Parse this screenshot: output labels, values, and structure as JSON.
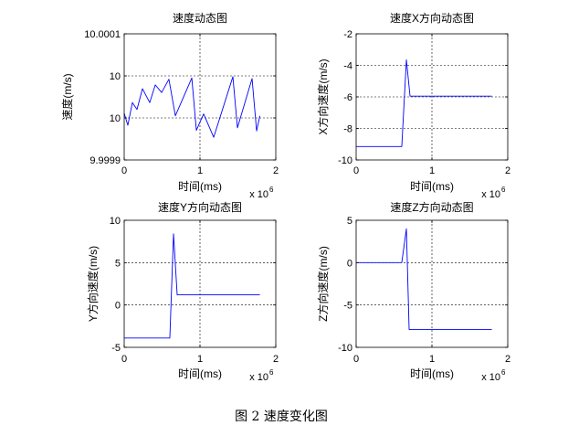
{
  "figure": {
    "caption": "图 2 速度变化图"
  },
  "chart_data": [
    {
      "type": "line",
      "title": "速度动态图",
      "xlabel": "时间(ms)",
      "ylabel": "速度(m/s)",
      "xlim": [
        0,
        2000000
      ],
      "ylim": [
        9.9999,
        10.0001
      ],
      "xticks": [
        0,
        1000000,
        2000000
      ],
      "xtick_labels": [
        "0",
        "1",
        "2"
      ],
      "x_multiplier": {
        "base": "x 10",
        "exponent": "6"
      },
      "yticks": [
        9.9999,
        9.999966667,
        10.000033333,
        10.0001
      ],
      "ytick_labels": [
        "9.9999",
        "10",
        "10",
        "10.0001"
      ],
      "grid": true,
      "series": [
        {
          "color": "#0000ff",
          "x": [
            0,
            48000,
            108000,
            169000,
            241000,
            337000,
            410000,
            494000,
            590000,
            675000,
            892000,
            952000,
            1048000,
            1181000,
            1434000,
            1494000,
            1687000,
            1747000,
            1790000
          ],
          "y": [
            9.999974,
            9.999955,
            9.999991,
            9.99998,
            10.000013,
            9.999991,
            10.000019,
            10.000007,
            10.000028,
            9.99997,
            10.00003,
            9.999947,
            9.999973,
            9.999936,
            10.000032,
            9.999951,
            10.000029,
            9.999946,
            9.99997
          ]
        }
      ]
    },
    {
      "type": "line",
      "title": "速度X方向动态图",
      "xlabel": "时间(ms)",
      "ylabel": "X方向速度(m/s)",
      "xlim": [
        0,
        2000000
      ],
      "ylim": [
        -10,
        -2
      ],
      "xticks": [
        0,
        1000000,
        2000000
      ],
      "xtick_labels": [
        "0",
        "1",
        "2"
      ],
      "x_multiplier": {
        "base": "x 10",
        "exponent": "6"
      },
      "yticks": [
        -10,
        -8,
        -6,
        -4,
        -2
      ],
      "ytick_labels": [
        "-10",
        "-8",
        "-6",
        "-4",
        "-2"
      ],
      "grid": true,
      "series": [
        {
          "color": "#0000ff",
          "x": [
            0,
            602000,
            663000,
            711000,
            1790000
          ],
          "y": [
            -9.15,
            -9.15,
            -3.65,
            -5.95,
            -5.95
          ]
        }
      ]
    },
    {
      "type": "line",
      "title": "速度Y方向动态图",
      "xlabel": "时间(ms)",
      "ylabel": "Y方向速度(m/s)",
      "xlim": [
        0,
        2000000
      ],
      "ylim": [
        -5,
        10
      ],
      "xticks": [
        0,
        1000000,
        2000000
      ],
      "xtick_labels": [
        "0",
        "1",
        "2"
      ],
      "x_multiplier": {
        "base": "x 10",
        "exponent": "6"
      },
      "yticks": [
        -5,
        0,
        5,
        10
      ],
      "ytick_labels": [
        "-5",
        "0",
        "5",
        "10"
      ],
      "grid": true,
      "series": [
        {
          "color": "#0000ff",
          "x": [
            0,
            602000,
            651000,
            699000,
            1790000
          ],
          "y": [
            -3.9,
            -3.9,
            8.4,
            1.2,
            1.2
          ]
        }
      ]
    },
    {
      "type": "line",
      "title": "速度Z方向动态图",
      "xlabel": "时间(ms)",
      "ylabel": "Z方向速度(m/s)",
      "xlim": [
        0,
        2000000
      ],
      "ylim": [
        -10,
        5
      ],
      "xticks": [
        0,
        1000000,
        2000000
      ],
      "xtick_labels": [
        "0",
        "1",
        "2"
      ],
      "x_multiplier": {
        "base": "x 10",
        "exponent": "6"
      },
      "yticks": [
        -10,
        -5,
        0,
        5
      ],
      "ytick_labels": [
        "-10",
        "-5",
        "0",
        "5"
      ],
      "grid": true,
      "series": [
        {
          "color": "#0000ff",
          "x": [
            0,
            602000,
            663000,
            699000,
            1790000
          ],
          "y": [
            0,
            0,
            4,
            -7.9,
            -7.9
          ]
        }
      ]
    }
  ]
}
